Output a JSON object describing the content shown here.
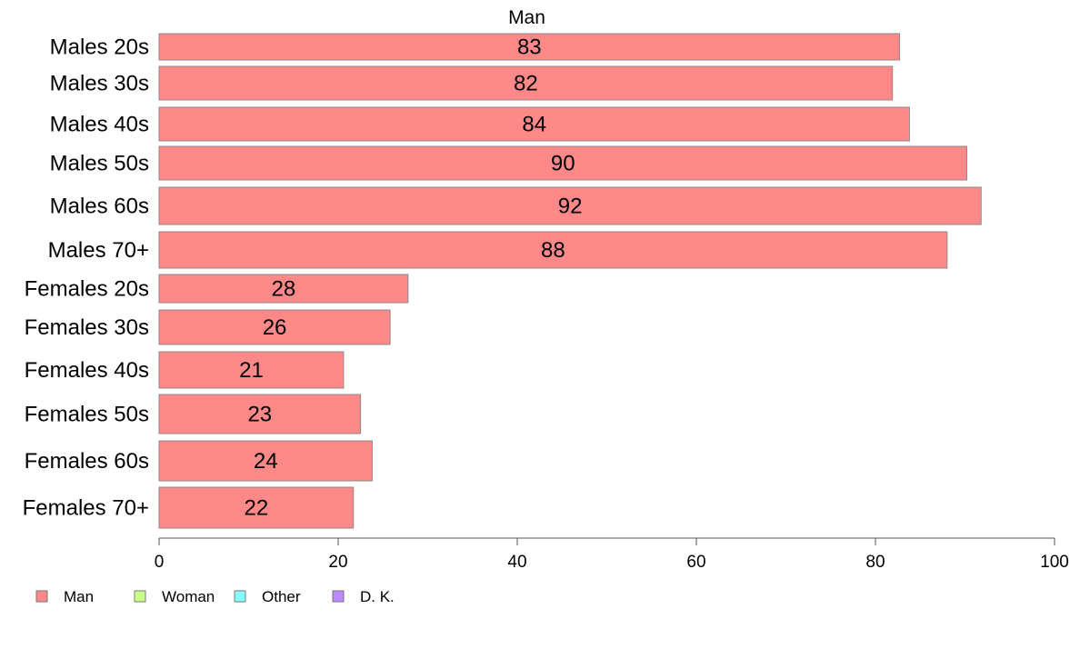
{
  "chart_data": {
    "type": "bar",
    "orientation": "horizontal",
    "title": "Man",
    "xlabel": "",
    "ylabel": "",
    "xlim": [
      0,
      100
    ],
    "xticks": [
      0,
      20,
      40,
      60,
      80,
      100
    ],
    "grid": false,
    "categories": [
      "Males 20s",
      "Males 30s",
      "Males 40s",
      "Males 50s",
      "Males 60s",
      "Males 70+",
      "Females 20s",
      "Females 30s",
      "Females 40s",
      "Females 50s",
      "Females 60s",
      "Females 70+"
    ],
    "series": [
      {
        "name": "Man",
        "color": "#ff8888",
        "values": [
          82.7,
          81.9,
          83.8,
          90.2,
          91.8,
          88.0,
          27.8,
          25.8,
          20.6,
          22.5,
          23.8,
          21.7
        ],
        "labels": [
          "83",
          "82",
          "84",
          "90",
          "92",
          "88",
          "28",
          "26",
          "21",
          "23",
          "24",
          "22"
        ]
      }
    ],
    "legend": {
      "placement": "bottom-left",
      "entries": [
        {
          "label": "Man",
          "color": "#ff8888"
        },
        {
          "label": "Woman",
          "color": "#ccff88"
        },
        {
          "label": "Other",
          "color": "#88ffff"
        },
        {
          "label": "D. K.",
          "color": "#bb88ff"
        }
      ]
    }
  }
}
